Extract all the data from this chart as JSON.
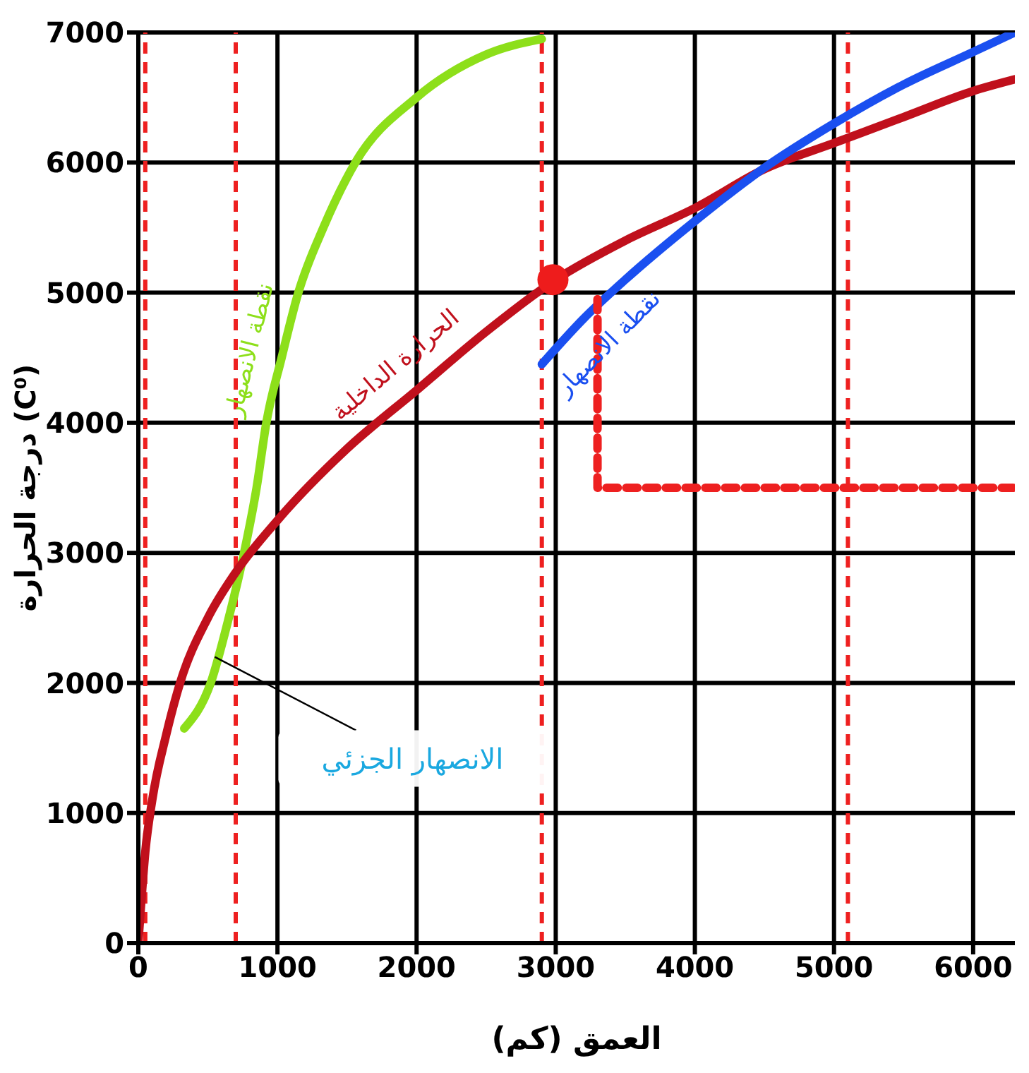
{
  "chart_data": {
    "type": "line",
    "xlabel": "العمق (كم)",
    "ylabel": "درجة الحرارة (C⁰)",
    "xlim": [
      0,
      6300
    ],
    "ylim": [
      0,
      7000
    ],
    "xticks": [
      0,
      1000,
      2000,
      3000,
      4000,
      5000,
      6000
    ],
    "yticks": [
      0,
      1000,
      2000,
      3000,
      4000,
      5000,
      6000,
      7000
    ],
    "grid": true,
    "legend": false,
    "marker": "none",
    "line_style": "solid",
    "series": [
      {
        "name": "نقطة الانصهار",
        "color": "#8ddf1a",
        "x": [
          330,
          520,
          650,
          760,
          850,
          920,
          1030,
          1150,
          1330,
          1560,
          2000,
          2500,
          2900
        ],
        "values": [
          1650,
          2000,
          2500,
          3000,
          3500,
          4000,
          4500,
          5000,
          5500,
          6000,
          6500,
          6830,
          6950
        ]
      },
      {
        "name": "الحرارة الداخلية",
        "color": "#c0101c",
        "x": [
          0,
          20,
          50,
          100,
          200,
          300,
          500,
          700,
          1000,
          1500,
          2000,
          2500,
          3000,
          3500,
          4000,
          4500,
          5000,
          5500,
          6000,
          6300
        ],
        "values": [
          0,
          300,
          700,
          1100,
          1600,
          2000,
          2500,
          2850,
          3250,
          3800,
          4250,
          4700,
          5100,
          5400,
          5650,
          5950,
          6150,
          6350,
          6550,
          6640
        ]
      },
      {
        "name": "نقطة الانصهار",
        "color": "#1a4ff0",
        "x": [
          2900,
          3200,
          3500,
          4000,
          4500,
          5000,
          5500,
          6000,
          6300
        ],
        "values": [
          4450,
          4800,
          5100,
          5550,
          5960,
          6300,
          6600,
          6850,
          7000
        ]
      },
      {
        "color": "#ee2020",
        "line_style": "dashed",
        "x": [
          3300,
          3300,
          6300
        ],
        "values": [
          4950,
          3500,
          3500
        ]
      },
      {
        "type": "scatter",
        "marker": "circle",
        "color": "#ee1c1c",
        "x": [
          2980
        ],
        "values": [
          5100
        ]
      }
    ],
    "ref_lines": [
      {
        "axis": "x",
        "value": 50,
        "color": "#ee2020",
        "line_style": "dashed"
      },
      {
        "axis": "x",
        "value": 700,
        "color": "#ee2020",
        "line_style": "dashed"
      },
      {
        "axis": "x",
        "value": 2900,
        "color": "#ee2020",
        "line_style": "dashed"
      },
      {
        "axis": "x",
        "value": 5100,
        "color": "#ee2020",
        "line_style": "dashed"
      }
    ],
    "annotations": [
      {
        "text": "الانصهار الجزئي",
        "x": 550,
        "y": 2200
      }
    ]
  }
}
